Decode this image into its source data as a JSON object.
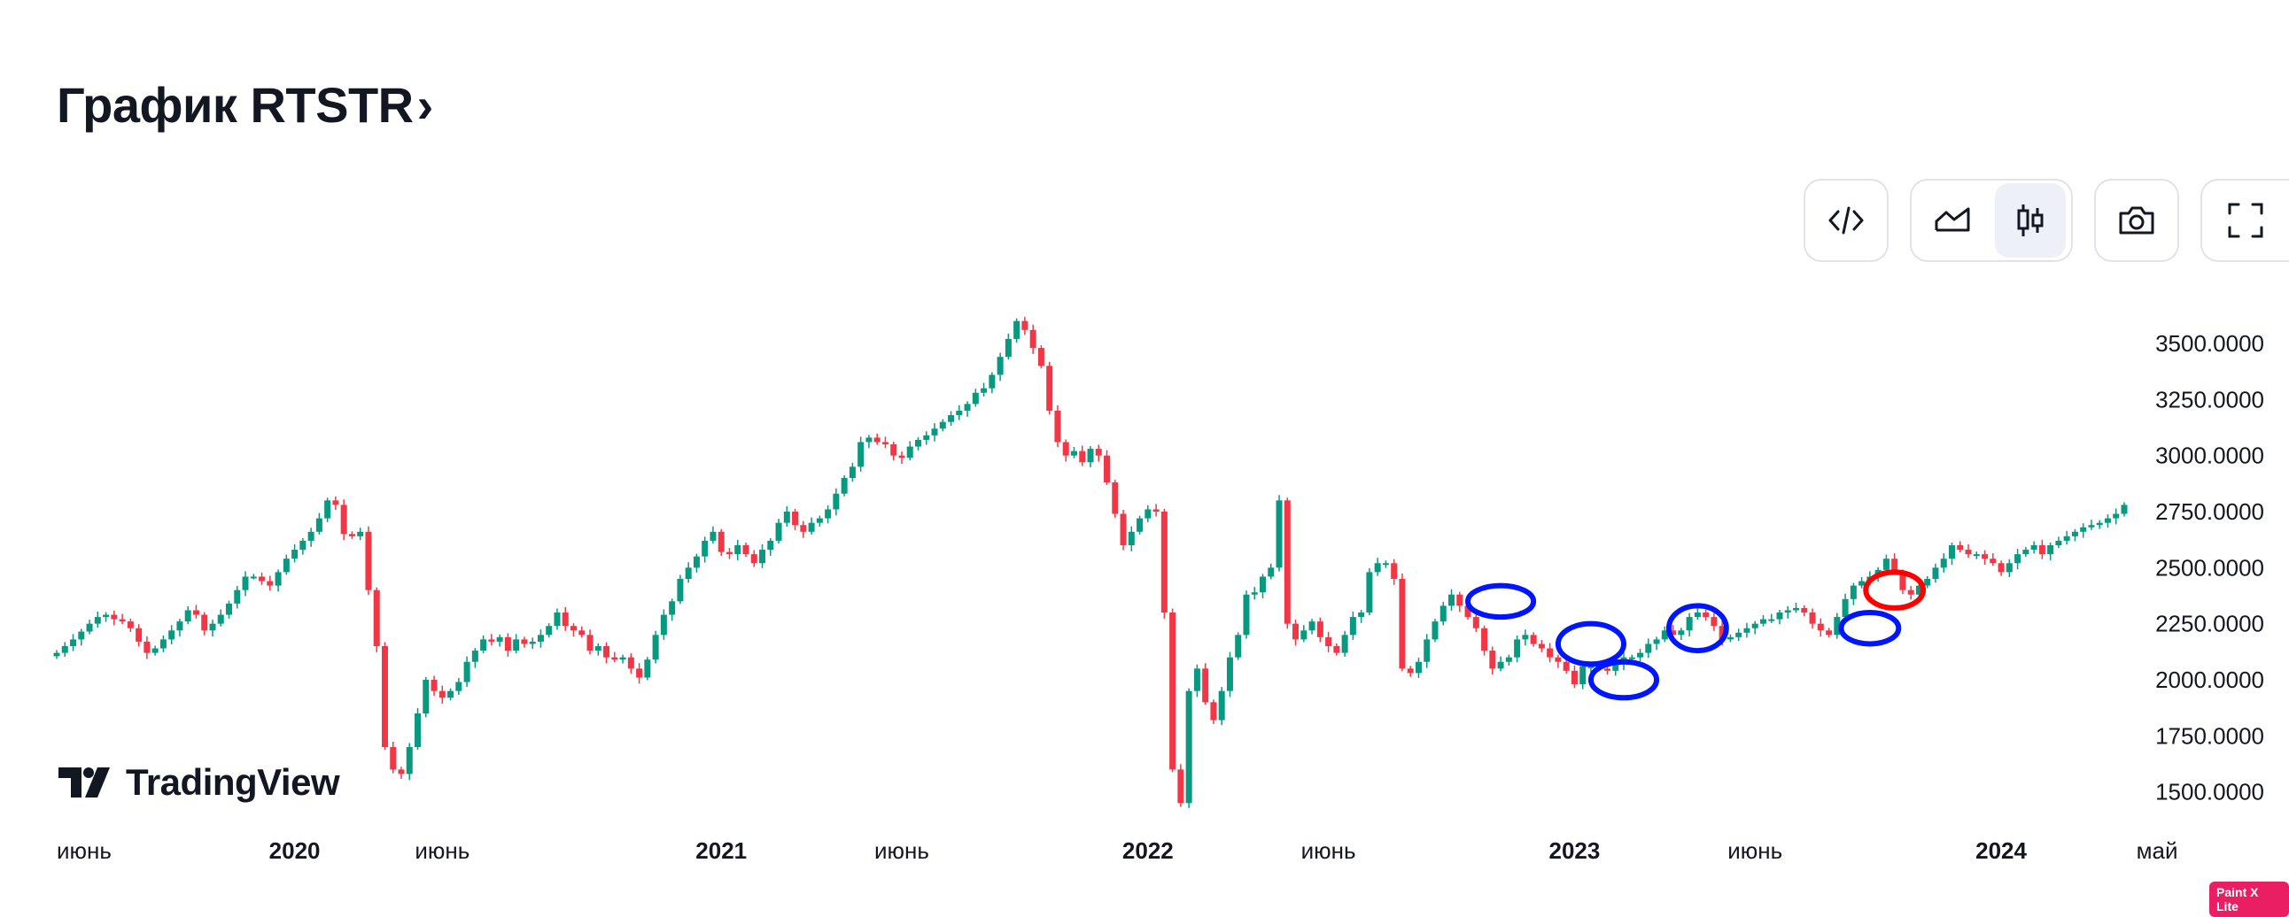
{
  "header": {
    "title": "График RTSTR",
    "chevron": "›"
  },
  "toolbar": {
    "embed_icon": "code-icon",
    "line_icon": "area-chart-icon",
    "candle_icon": "candlestick-icon",
    "camera_icon": "camera-icon",
    "fullscreen_icon": "fullscreen-icon",
    "active_view": "candles"
  },
  "brand": {
    "name": "TradingView"
  },
  "watermark": {
    "text": "Paint X Lite"
  },
  "colors": {
    "up": "#089981",
    "down": "#f23645",
    "text": "#131722",
    "blue_mark": "#0015ff",
    "red_mark": "#ff0000"
  },
  "chart_data": {
    "type": "candlestick",
    "symbol": "RTSTR",
    "period": "weekly",
    "ylim": [
      1400,
      3650
    ],
    "y_ticks": [
      "1500.0000",
      "1750.0000",
      "2000.0000",
      "2250.0000",
      "2500.0000",
      "2750.0000",
      "3000.0000",
      "3250.0000",
      "3500.0000"
    ],
    "x_ticks": [
      {
        "label": "июнь",
        "week": 0,
        "bold": false
      },
      {
        "label": "2020",
        "week": 29,
        "bold": true
      },
      {
        "label": "июнь",
        "week": 47,
        "bold": false
      },
      {
        "label": "2021",
        "week": 81,
        "bold": true
      },
      {
        "label": "июнь",
        "week": 103,
        "bold": false
      },
      {
        "label": "2022",
        "week": 133,
        "bold": true
      },
      {
        "label": "июнь",
        "week": 155,
        "bold": false
      },
      {
        "label": "2023",
        "week": 185,
        "bold": true
      },
      {
        "label": "июнь",
        "week": 207,
        "bold": false
      },
      {
        "label": "2024",
        "week": 237,
        "bold": true
      },
      {
        "label": "май",
        "week": 256,
        "bold": false
      }
    ],
    "close": [
      2120,
      2150,
      2180,
      2215,
      2250,
      2280,
      2290,
      2270,
      2260,
      2230,
      2170,
      2120,
      2140,
      2180,
      2220,
      2260,
      2310,
      2290,
      2220,
      2250,
      2290,
      2340,
      2400,
      2460,
      2460,
      2440,
      2420,
      2480,
      2540,
      2580,
      2620,
      2660,
      2720,
      2800,
      2780,
      2650,
      2640,
      2660,
      2400,
      2150,
      1700,
      1600,
      1580,
      1700,
      1850,
      2000,
      1950,
      1920,
      1950,
      1990,
      2080,
      2130,
      2180,
      2170,
      2190,
      2130,
      2180,
      2160,
      2170,
      2200,
      2240,
      2300,
      2240,
      2220,
      2200,
      2130,
      2150,
      2100,
      2090,
      2100,
      2050,
      2010,
      2090,
      2200,
      2290,
      2350,
      2450,
      2500,
      2550,
      2620,
      2660,
      2570,
      2560,
      2600,
      2560,
      2520,
      2580,
      2620,
      2700,
      2750,
      2690,
      2660,
      2700,
      2720,
      2760,
      2830,
      2900,
      2950,
      3060,
      3080,
      3060,
      3050,
      3000,
      2990,
      3040,
      3070,
      3090,
      3120,
      3150,
      3180,
      3200,
      3230,
      3280,
      3300,
      3360,
      3440,
      3520,
      3600,
      3560,
      3480,
      3400,
      3200,
      3060,
      3000,
      3020,
      2970,
      3030,
      3000,
      2880,
      2740,
      2600,
      2660,
      2720,
      2760,
      2750,
      2300,
      1600,
      1450,
      1950,
      2050,
      1900,
      1820,
      1950,
      2100,
      2200,
      2380,
      2390,
      2460,
      2500,
      2800,
      2250,
      2180,
      2220,
      2260,
      2190,
      2150,
      2120,
      2200,
      2280,
      2300,
      2480,
      2520,
      2520,
      2450,
      2050,
      2030,
      2080,
      2180,
      2260,
      2330,
      2380,
      2330,
      2280,
      2230,
      2130,
      2050,
      2080,
      2100,
      2180,
      2200,
      2160,
      2140,
      2100,
      2080,
      2040,
      1980,
      2060,
      2060,
      2050,
      2040,
      2070,
      2100,
      2100,
      2120,
      2160,
      2180,
      2220,
      2200,
      2220,
      2280,
      2300,
      2280,
      2240,
      2180,
      2190,
      2210,
      2230,
      2250,
      2270,
      2270,
      2300,
      2310,
      2320,
      2300,
      2250,
      2220,
      2200,
      2280,
      2360,
      2420,
      2440,
      2460,
      2490,
      2540,
      2480,
      2400,
      2380,
      2420,
      2450,
      2500,
      2540,
      2600,
      2580,
      2560,
      2560,
      2540,
      2520,
      2480,
      2520,
      2560,
      2580,
      2600,
      2560,
      2600,
      2620,
      2640,
      2660,
      2680,
      2690,
      2700,
      2720,
      2740,
      2780
    ],
    "annotations": [
      {
        "type": "ellipse",
        "color": "blue",
        "cx_week": 176,
        "cy": 2350,
        "rx_weeks": 4.0,
        "ry": 70
      },
      {
        "type": "ellipse",
        "color": "blue",
        "cx_week": 187,
        "cy": 2160,
        "rx_weeks": 4.0,
        "ry": 90
      },
      {
        "type": "ellipse",
        "color": "blue",
        "cx_week": 191,
        "cy": 2000,
        "rx_weeks": 4.0,
        "ry": 80
      },
      {
        "type": "ellipse",
        "color": "blue",
        "cx_week": 200,
        "cy": 2230,
        "rx_weeks": 3.5,
        "ry": 100
      },
      {
        "type": "ellipse",
        "color": "blue",
        "cx_week": 221,
        "cy": 2230,
        "rx_weeks": 3.5,
        "ry": 70
      },
      {
        "type": "ellipse",
        "color": "red",
        "cx_week": 224,
        "cy": 2400,
        "rx_weeks": 3.5,
        "ry": 80
      }
    ]
  }
}
